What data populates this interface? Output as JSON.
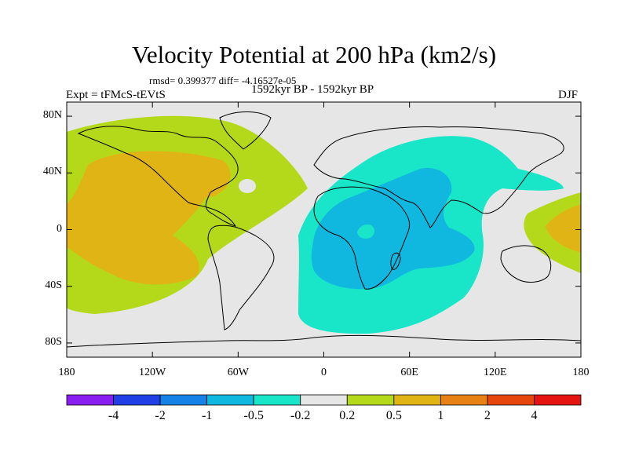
{
  "figure": {
    "title": "Velocity Potential at 200 hPa (km2/s)",
    "stats": "rmsd= 0.399377 diff= -4.16527e-05",
    "period": "1592kyr BP - 1592kyr BP",
    "experiment": "Expt = tFMcS-tEVtS",
    "season": "DJF"
  },
  "map": {
    "projection": "cylindrical-equidistant",
    "lon_range": [
      -180,
      180
    ],
    "lat_range": [
      -90,
      90
    ],
    "y_ticks": [
      {
        "lat": 80,
        "label": "80N"
      },
      {
        "lat": 40,
        "label": "40N"
      },
      {
        "lat": 0,
        "label": "0"
      },
      {
        "lat": -40,
        "label": "40S"
      },
      {
        "lat": -80,
        "label": "80S"
      }
    ],
    "x_ticks": [
      {
        "lon": -180,
        "label": "180"
      },
      {
        "lon": -120,
        "label": "120W"
      },
      {
        "lon": -60,
        "label": "60W"
      },
      {
        "lon": 0,
        "label": "0"
      },
      {
        "lon": 60,
        "label": "60E"
      },
      {
        "lon": 120,
        "label": "120E"
      },
      {
        "lon": 180,
        "label": "180"
      }
    ],
    "background_color": "#e6e6e6"
  },
  "colorbar": {
    "colors": [
      "#8a1ef0",
      "#2040e6",
      "#1482e6",
      "#10b8e0",
      "#19e6c8",
      "#e6e6e6",
      "#b4d91a",
      "#e0b414",
      "#e68214",
      "#e6460c",
      "#e61410"
    ],
    "labels": [
      "-4",
      "-2",
      "-1",
      "-0.5",
      "-0.2",
      "0.2",
      "0.5",
      "1",
      "2",
      "4"
    ]
  }
}
